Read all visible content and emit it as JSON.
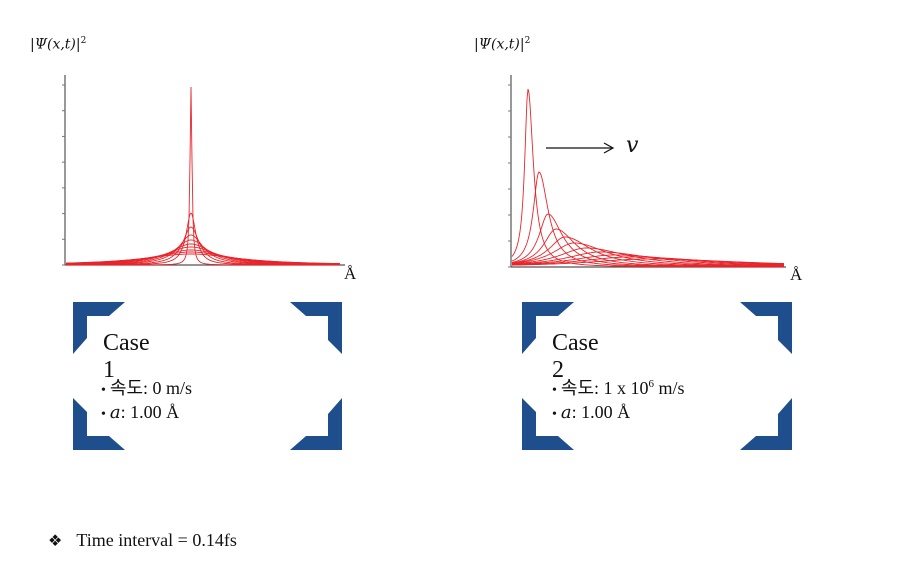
{
  "chart_data": [
    {
      "type": "line",
      "ylabel": "|Ψ(x,t)|",
      "ylabel_exponent": "2",
      "xunit": "Å",
      "case": {
        "title": "Case 1",
        "speed_label": "속도",
        "speed_value": "0 m/s",
        "a_label": "a",
        "a_value": "1.00 Å"
      }
    },
    {
      "type": "line",
      "ylabel": "|Ψ(x,t)|",
      "ylabel_exponent": "2",
      "xunit": "Å",
      "arrow_label": "v",
      "case": {
        "title": "Case 2",
        "speed_label": "속도",
        "speed_value": "1 x 10",
        "speed_exponent": "6",
        "speed_unit": "m/s",
        "a_label": "a",
        "a_value": "1.00 Å"
      }
    }
  ],
  "colors": {
    "curve": "#e8252b",
    "bracket": "#1f4e8c",
    "axis": "#555555"
  },
  "footnote": {
    "icon": "diamond-flower-icon",
    "text": "Time interval = 0.14fs"
  }
}
